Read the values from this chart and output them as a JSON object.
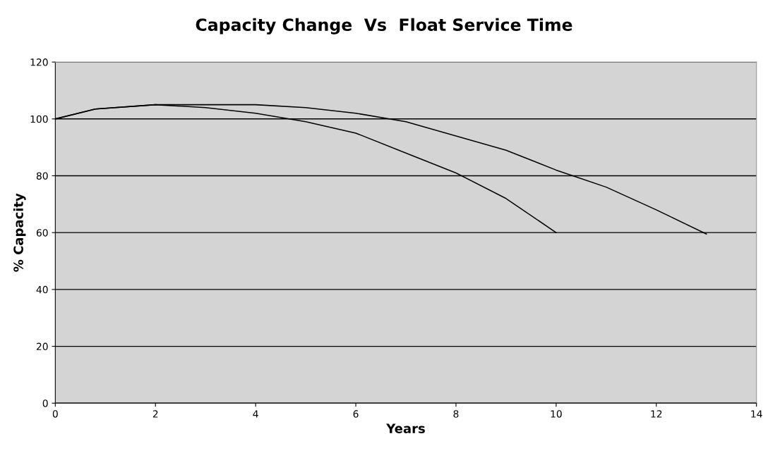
{
  "chart_data": {
    "type": "line",
    "title": "Capacity Change  Vs  Float Service Time",
    "xlabel": "Years",
    "ylabel": "% Capacity",
    "series": [
      {
        "color": "#000000",
        "x": [
          0,
          0.8,
          2,
          3,
          4,
          5,
          6,
          7,
          8,
          9,
          10
        ],
        "values": [
          100,
          103.5,
          105,
          104,
          102,
          99,
          95,
          88,
          81,
          72,
          60
        ]
      },
      {
        "color": "#000000",
        "x": [
          0,
          0.8,
          2,
          3,
          4,
          5,
          6,
          7,
          8,
          9,
          10,
          11,
          12,
          13
        ],
        "values": [
          100,
          103.5,
          105,
          105,
          105,
          104,
          102,
          99,
          94,
          89,
          82,
          76,
          68,
          59.5
        ]
      }
    ],
    "xlim": [
      0,
      14
    ],
    "xticks": [
      0,
      2,
      4,
      6,
      8,
      10,
      12,
      14
    ],
    "ylim": [
      0,
      120
    ],
    "yticks": [
      0,
      20,
      40,
      60,
      80,
      100,
      120
    ],
    "grid": "y",
    "legend": false,
    "marker": "none",
    "line_style": "solid"
  }
}
